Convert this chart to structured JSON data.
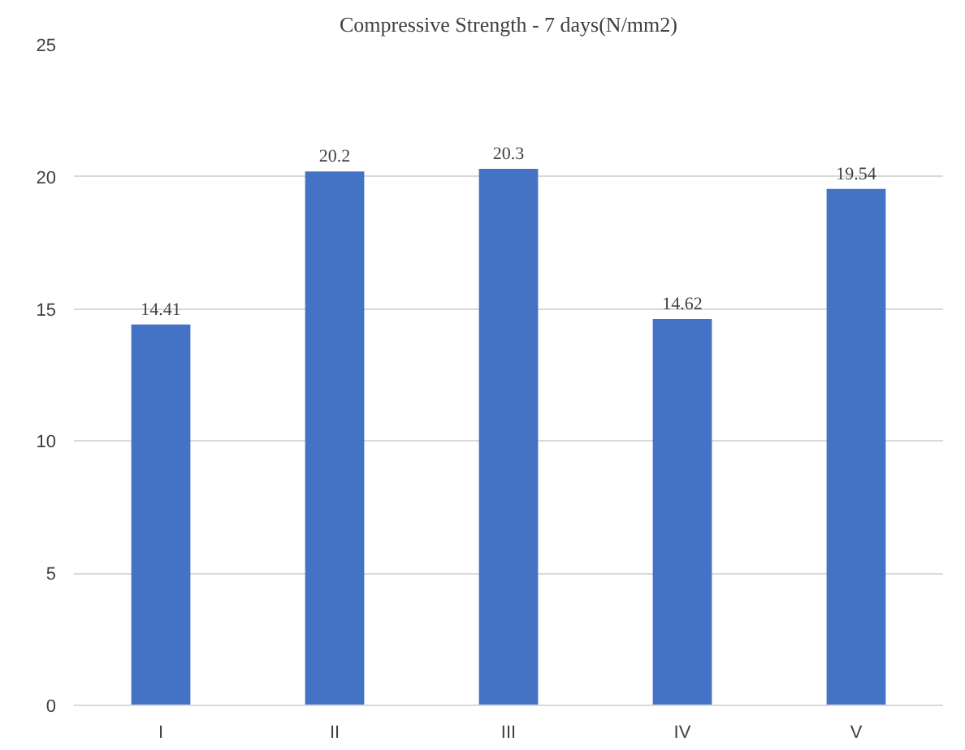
{
  "chart_data": {
    "type": "bar",
    "title": "Compressive Strength - 7 days(N/mm2)",
    "categories": [
      "I",
      "II",
      "III",
      "IV",
      "V"
    ],
    "values": [
      14.41,
      20.2,
      20.3,
      14.62,
      19.54
    ],
    "color": "#4472c4",
    "ylim": [
      0,
      25
    ],
    "yticks": [
      0,
      5,
      10,
      15,
      20,
      25
    ],
    "grid": "y",
    "data_labels": true
  }
}
